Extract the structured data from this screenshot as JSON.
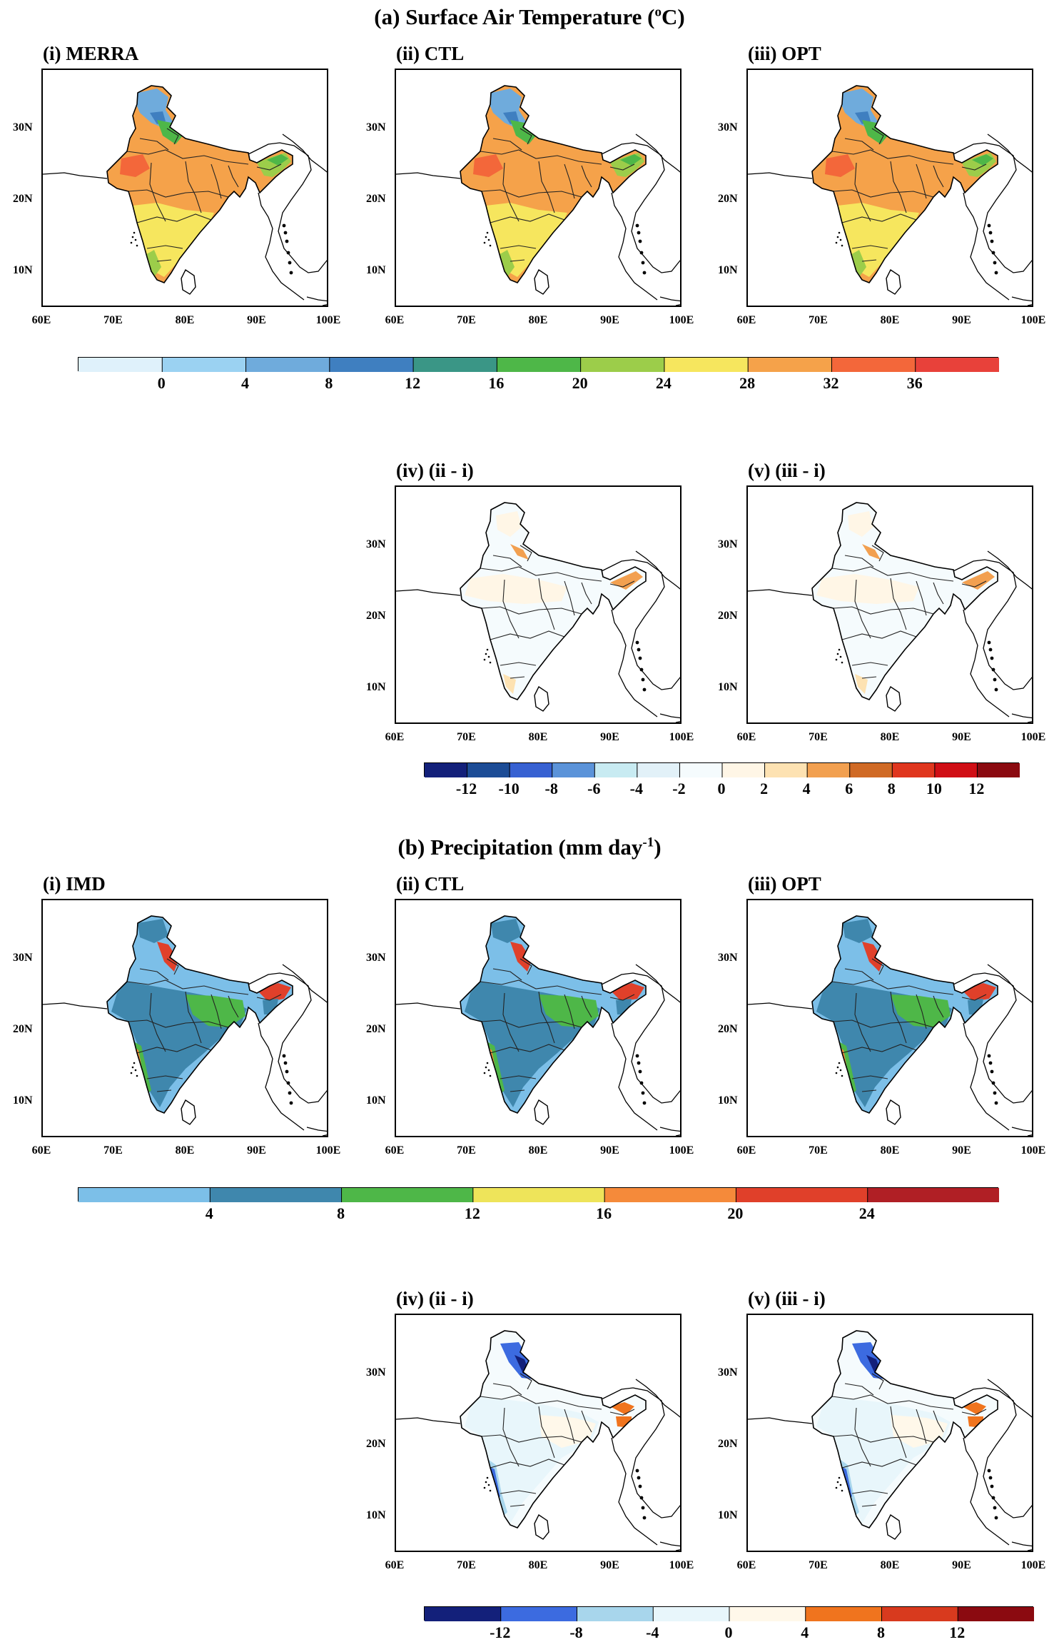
{
  "sections": {
    "temperature": {
      "title_text": "(a) Surface Air Temperature (",
      "title_sup": "o",
      "title_unit": "C)",
      "panels": [
        {
          "label": "(i) MERRA",
          "scheme": "temp",
          "id": "t1"
        },
        {
          "label": "(ii) CTL",
          "scheme": "temp",
          "id": "t2"
        },
        {
          "label": "(iii) OPT",
          "scheme": "temp",
          "id": "t3"
        },
        {
          "label": "(iv) (ii - i)",
          "scheme": "tdiff",
          "id": "t4"
        },
        {
          "label": "(v) (iii - i)",
          "scheme": "tdiff",
          "id": "t5"
        }
      ],
      "colorbar_main": {
        "labels": [
          "0",
          "4",
          "8",
          "12",
          "16",
          "20",
          "24",
          "28",
          "32",
          "36"
        ],
        "colors": [
          "#dff1fb",
          "#9bd2f2",
          "#6fabdc",
          "#3f7fc0",
          "#3a9686",
          "#4eb748",
          "#9ccd4a",
          "#f6e65e",
          "#f5a24a",
          "#f3673a",
          "#e8413a"
        ]
      },
      "colorbar_diff": {
        "labels": [
          "-12",
          "-10",
          "-8",
          "-6",
          "-4",
          "-2",
          "0",
          "2",
          "4",
          "6",
          "8",
          "10",
          "12"
        ],
        "colors": [
          "#13207a",
          "#1c4c96",
          "#3761d2",
          "#5b93d9",
          "#c8ebf2",
          "#e2f1f8",
          "#f5fbfd",
          "#fff6e6",
          "#fde2b2",
          "#f2a050",
          "#d06a25",
          "#e0361e",
          "#d00e15",
          "#8b0a10"
        ]
      }
    },
    "precipitation": {
      "title_text": "(b) Precipitation (mm day",
      "title_sup": "-1",
      "title_unit": ")",
      "panels": [
        {
          "label": "(i) IMD",
          "scheme": "prec",
          "id": "p1"
        },
        {
          "label": "(ii) CTL",
          "scheme": "prec",
          "id": "p2"
        },
        {
          "label": "(iii) OPT",
          "scheme": "prec",
          "id": "p3"
        },
        {
          "label": "(iv) (ii - i)",
          "scheme": "pdiff",
          "id": "p4"
        },
        {
          "label": "(v) (iii - i)",
          "scheme": "pdiff",
          "id": "p5"
        }
      ],
      "colorbar_main": {
        "labels": [
          "4",
          "8",
          "12",
          "16",
          "20",
          "24"
        ],
        "colors": [
          "#7cbfe8",
          "#3f87ad",
          "#4eb748",
          "#eee45a",
          "#f58a3a",
          "#e0402a",
          "#b01f25"
        ]
      },
      "colorbar_diff": {
        "labels": [
          "-12",
          "-8",
          "-4",
          "0",
          "4",
          "8",
          "12"
        ],
        "colors": [
          "#13207a",
          "#3c6be0",
          "#a8d6ec",
          "#e8f6fb",
          "#fff8ea",
          "#f0741e",
          "#d83a1e",
          "#8b0a10"
        ]
      }
    }
  },
  "axes": {
    "x_ticks": [
      "60E",
      "70E",
      "80E",
      "90E",
      "100E"
    ],
    "y_ticks": [
      "30N",
      "20N",
      "10N"
    ]
  }
}
